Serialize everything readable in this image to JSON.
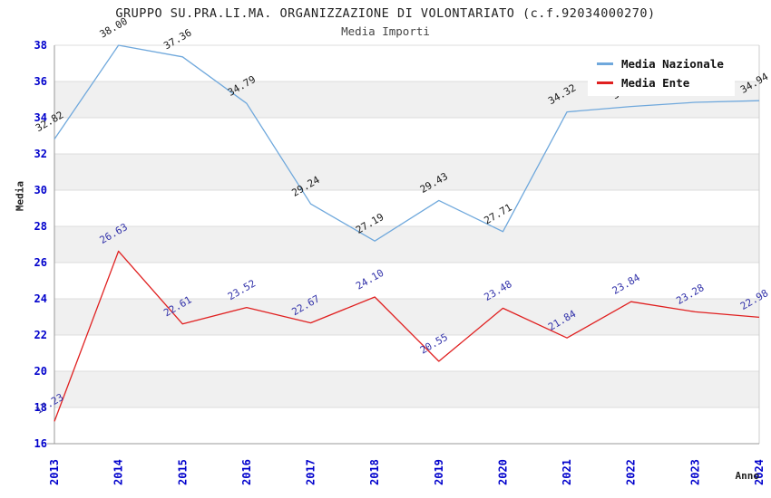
{
  "chart_data": {
    "type": "line",
    "title": "GRUPPO SU.PRA.LI.MA. ORGANIZZAZIONE DI VOLONTARIATO (c.f.92034000270)",
    "subtitle": "Media Importi",
    "categories": [
      "2013",
      "2014",
      "2015",
      "2016",
      "2017",
      "2018",
      "2019",
      "2020",
      "2021",
      "2022",
      "2023",
      "2024"
    ],
    "series": [
      {
        "name": "Media Nazionale",
        "color": "#6FA8DC",
        "label_color": "#1A1A1A",
        "values": [
          32.82,
          38.0,
          37.36,
          34.79,
          29.24,
          27.19,
          29.43,
          27.71,
          34.32,
          34.62,
          34.85,
          34.94
        ]
      },
      {
        "name": "Media Ente",
        "color": "#E02020",
        "label_color": "#3333AA",
        "values": [
          17.23,
          26.63,
          22.61,
          23.52,
          22.67,
          24.1,
          20.55,
          23.48,
          21.84,
          23.84,
          23.28,
          22.98
        ]
      }
    ],
    "xlabel": "Anno",
    "ylabel": "Media",
    "ylim": [
      16,
      38
    ],
    "ytick_step": 2,
    "grid": true,
    "legend_position": "top-right",
    "tick_color": "#0000CC",
    "band_color": "#F0F0F0",
    "gridline_color": "#DCDCDC",
    "axis_line_color": "#999999"
  }
}
